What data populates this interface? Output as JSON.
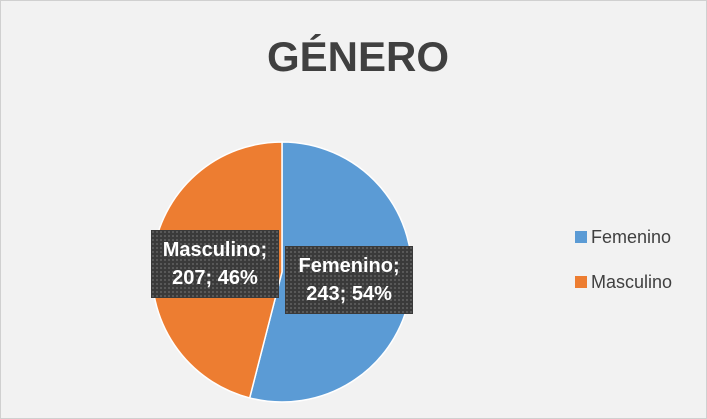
{
  "chart_data": {
    "type": "pie",
    "title": "GÉNERO",
    "categories": [
      "Femenino",
      "Masculino"
    ],
    "values": [
      243,
      207
    ],
    "value_labels": [
      "Femenino; 243; 54%",
      "Masculino; 207; 46%"
    ],
    "colors": [
      "#5b9bd5",
      "#ed7d31"
    ],
    "legend": "right"
  }
}
